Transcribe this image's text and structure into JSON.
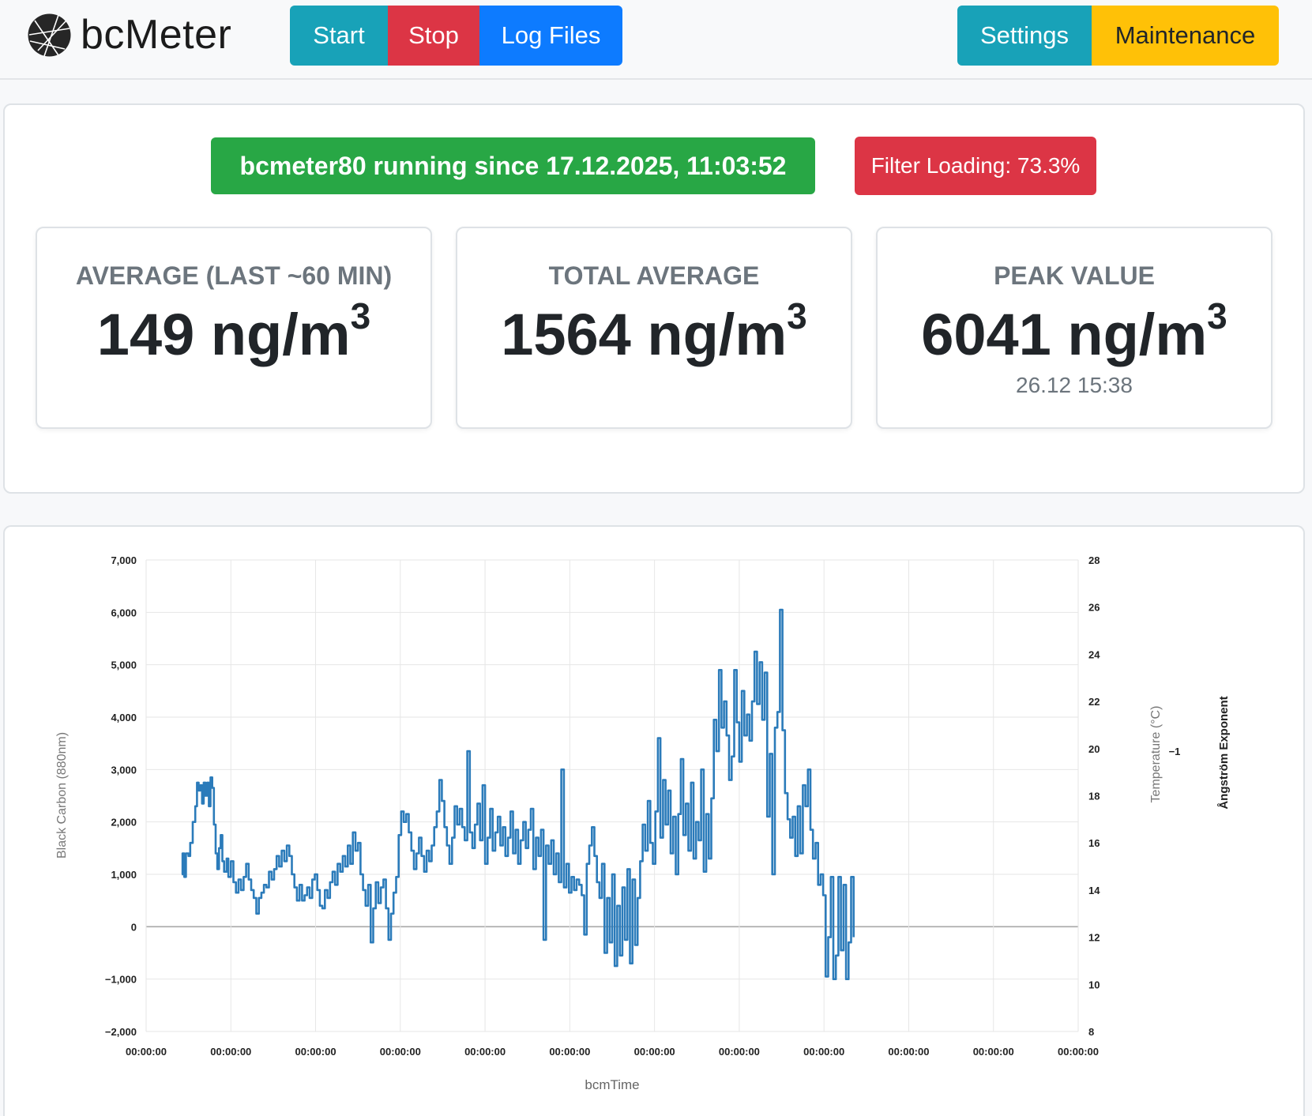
{
  "brand": {
    "name": "bcMeter"
  },
  "nav": {
    "start": "Start",
    "stop": "Stop",
    "log_files": "Log Files",
    "settings": "Settings",
    "maintenance": "Maintenance"
  },
  "status": {
    "running": "bcmeter80 running since 17.12.2025, 11:03:52",
    "filter_loading": "Filter Loading: 73.3%"
  },
  "stats": [
    {
      "label": "AVERAGE (LAST ~60 MIN)",
      "value": "149",
      "unit": "ng/m",
      "exp": "3",
      "sub": ""
    },
    {
      "label": "TOTAL AVERAGE",
      "value": "1564",
      "unit": "ng/m",
      "exp": "3",
      "sub": ""
    },
    {
      "label": "PEAK VALUE",
      "value": "6041",
      "unit": "ng/m",
      "exp": "3",
      "sub": "26.12 15:38"
    }
  ],
  "colors": {
    "series": "#2b7bba",
    "grid": "#e6e6e6",
    "zero_line": "#a8a8a8"
  },
  "chart_data": {
    "type": "line",
    "xlabel": "bcmTime",
    "ylabel": "Black Carbon (880nm)",
    "y2label": "Temperature (°C)",
    "y3label": "Ångström Exponent",
    "y3tick": "−1",
    "ylim": [
      -2000,
      7000
    ],
    "y2lim": [
      8,
      28
    ],
    "yticks": [
      "7,000",
      "6,000",
      "5,000",
      "4,000",
      "3,000",
      "2,000",
      "1,000",
      "0",
      "−1,000",
      "−2,000"
    ],
    "y2ticks": [
      "28",
      "26",
      "24",
      "22",
      "20",
      "18",
      "16",
      "14",
      "12",
      "10",
      "8"
    ],
    "xticks": [
      "00:00:00",
      "00:00:00",
      "00:00:00",
      "00:00:00",
      "00:00:00",
      "00:00:00",
      "00:00:00",
      "00:00:00",
      "00:00:00",
      "00:00:00",
      "00:00:00",
      "00:00:00"
    ],
    "grid": true,
    "series": [
      {
        "values": [
          [
            0.42,
            1000
          ],
          [
            0.43,
            1400
          ],
          [
            0.45,
            950
          ],
          [
            0.47,
            1400
          ],
          [
            0.5,
            1350
          ],
          [
            0.52,
            1600
          ],
          [
            0.55,
            2000
          ],
          [
            0.58,
            2300
          ],
          [
            0.6,
            2750
          ],
          [
            0.62,
            2600
          ],
          [
            0.64,
            2700
          ],
          [
            0.66,
            2350
          ],
          [
            0.68,
            2750
          ],
          [
            0.7,
            2500
          ],
          [
            0.72,
            2750
          ],
          [
            0.74,
            2300
          ],
          [
            0.76,
            2850
          ],
          [
            0.78,
            2650
          ],
          [
            0.8,
            1950
          ],
          [
            0.82,
            1400
          ],
          [
            0.84,
            1100
          ],
          [
            0.86,
            1500
          ],
          [
            0.88,
            1750
          ],
          [
            0.9,
            1250
          ],
          [
            0.92,
            1050
          ],
          [
            0.95,
            1300
          ],
          [
            0.97,
            950
          ],
          [
            1.0,
            1250
          ],
          [
            1.03,
            850
          ],
          [
            1.06,
            650
          ],
          [
            1.09,
            900
          ],
          [
            1.12,
            700
          ],
          [
            1.15,
            950
          ],
          [
            1.18,
            1200
          ],
          [
            1.21,
            900
          ],
          [
            1.24,
            700
          ],
          [
            1.27,
            550
          ],
          [
            1.3,
            250
          ],
          [
            1.33,
            550
          ],
          [
            1.36,
            650
          ],
          [
            1.39,
            800
          ],
          [
            1.42,
            750
          ],
          [
            1.45,
            1050
          ],
          [
            1.48,
            900
          ],
          [
            1.51,
            1100
          ],
          [
            1.54,
            1350
          ],
          [
            1.57,
            1150
          ],
          [
            1.6,
            1450
          ],
          [
            1.63,
            1250
          ],
          [
            1.66,
            1550
          ],
          [
            1.69,
            1350
          ],
          [
            1.72,
            1000
          ],
          [
            1.75,
            750
          ],
          [
            1.78,
            500
          ],
          [
            1.81,
            800
          ],
          [
            1.84,
            500
          ],
          [
            1.87,
            600
          ],
          [
            1.9,
            750
          ],
          [
            1.93,
            550
          ],
          [
            1.96,
            900
          ],
          [
            1.99,
            1000
          ],
          [
            2.02,
            700
          ],
          [
            2.05,
            400
          ],
          [
            2.08,
            350
          ],
          [
            2.11,
            700
          ],
          [
            2.14,
            550
          ],
          [
            2.17,
            850
          ],
          [
            2.2,
            1050
          ],
          [
            2.23,
            800
          ],
          [
            2.26,
            1200
          ],
          [
            2.29,
            1050
          ],
          [
            2.32,
            1350
          ],
          [
            2.35,
            1150
          ],
          [
            2.38,
            1550
          ],
          [
            2.41,
            1200
          ],
          [
            2.44,
            1800
          ],
          [
            2.47,
            1450
          ],
          [
            2.5,
            1600
          ],
          [
            2.53,
            1000
          ],
          [
            2.56,
            700
          ],
          [
            2.59,
            400
          ],
          [
            2.62,
            800
          ],
          [
            2.65,
            -300
          ],
          [
            2.68,
            350
          ],
          [
            2.71,
            850
          ],
          [
            2.74,
            450
          ],
          [
            2.77,
            750
          ],
          [
            2.8,
            900
          ],
          [
            2.83,
            350
          ],
          [
            2.86,
            -250
          ],
          [
            2.89,
            250
          ],
          [
            2.92,
            650
          ],
          [
            2.95,
            950
          ],
          [
            2.98,
            1750
          ],
          [
            3.01,
            2200
          ],
          [
            3.04,
            2000
          ],
          [
            3.07,
            2150
          ],
          [
            3.1,
            1800
          ],
          [
            3.13,
            1450
          ],
          [
            3.16,
            1100
          ],
          [
            3.19,
            1400
          ],
          [
            3.22,
            1700
          ],
          [
            3.25,
            1350
          ],
          [
            3.28,
            1050
          ],
          [
            3.31,
            1450
          ],
          [
            3.34,
            1250
          ],
          [
            3.37,
            1550
          ],
          [
            3.4,
            1900
          ],
          [
            3.43,
            2200
          ],
          [
            3.46,
            2800
          ],
          [
            3.49,
            2400
          ],
          [
            3.52,
            1900
          ],
          [
            3.55,
            1550
          ],
          [
            3.58,
            1200
          ],
          [
            3.61,
            1700
          ],
          [
            3.64,
            2300
          ],
          [
            3.67,
            1950
          ],
          [
            3.7,
            2250
          ],
          [
            3.73,
            1900
          ],
          [
            3.76,
            1650
          ],
          [
            3.79,
            3350
          ],
          [
            3.82,
            1800
          ],
          [
            3.85,
            1500
          ],
          [
            3.88,
            1950
          ],
          [
            3.91,
            2350
          ],
          [
            3.94,
            1650
          ],
          [
            3.97,
            2700
          ],
          [
            4.0,
            1200
          ],
          [
            4.03,
            1700
          ],
          [
            4.06,
            2250
          ],
          [
            4.09,
            1450
          ],
          [
            4.12,
            1800
          ],
          [
            4.15,
            2100
          ],
          [
            4.18,
            1550
          ],
          [
            4.21,
            1900
          ],
          [
            4.24,
            1350
          ],
          [
            4.27,
            1700
          ],
          [
            4.3,
            2200
          ],
          [
            4.33,
            1400
          ],
          [
            4.36,
            1850
          ],
          [
            4.39,
            1200
          ],
          [
            4.42,
            1650
          ],
          [
            4.45,
            2000
          ],
          [
            4.48,
            1500
          ],
          [
            4.51,
            1850
          ],
          [
            4.54,
            2250
          ],
          [
            4.57,
            1100
          ],
          [
            4.6,
            1700
          ],
          [
            4.63,
            1350
          ],
          [
            4.66,
            1850
          ],
          [
            4.69,
            -250
          ],
          [
            4.72,
            1550
          ],
          [
            4.75,
            1200
          ],
          [
            4.78,
            1650
          ],
          [
            4.81,
            1000
          ],
          [
            4.84,
            1400
          ],
          [
            4.87,
            850
          ],
          [
            4.9,
            3000
          ],
          [
            4.93,
            750
          ],
          [
            4.96,
            1200
          ],
          [
            4.99,
            650
          ],
          [
            5.02,
            950
          ],
          [
            5.05,
            700
          ],
          [
            5.08,
            900
          ],
          [
            5.11,
            800
          ],
          [
            5.14,
            600
          ],
          [
            5.17,
            -150
          ],
          [
            5.2,
            1200
          ],
          [
            5.23,
            1550
          ],
          [
            5.26,
            1900
          ],
          [
            5.29,
            1350
          ],
          [
            5.32,
            850
          ],
          [
            5.35,
            550
          ],
          [
            5.38,
            1200
          ],
          [
            5.41,
            -500
          ],
          [
            5.44,
            550
          ],
          [
            5.47,
            -300
          ],
          [
            5.5,
            1000
          ],
          [
            5.53,
            -750
          ],
          [
            5.56,
            400
          ],
          [
            5.59,
            -550
          ],
          [
            5.62,
            750
          ],
          [
            5.65,
            -250
          ],
          [
            5.68,
            1100
          ],
          [
            5.71,
            -700
          ],
          [
            5.74,
            900
          ],
          [
            5.77,
            -350
          ],
          [
            5.8,
            550
          ],
          [
            5.83,
            1250
          ],
          [
            5.86,
            1950
          ],
          [
            5.89,
            1450
          ],
          [
            5.92,
            2400
          ],
          [
            5.95,
            1600
          ],
          [
            5.98,
            1200
          ],
          [
            6.01,
            2200
          ],
          [
            6.04,
            3600
          ],
          [
            6.07,
            1700
          ],
          [
            6.1,
            2800
          ],
          [
            6.13,
            1950
          ],
          [
            6.16,
            2600
          ],
          [
            6.19,
            1400
          ],
          [
            6.22,
            2100
          ],
          [
            6.25,
            1000
          ],
          [
            6.28,
            2150
          ],
          [
            6.31,
            3200
          ],
          [
            6.34,
            1750
          ],
          [
            6.37,
            2350
          ],
          [
            6.4,
            1450
          ],
          [
            6.43,
            2750
          ],
          [
            6.46,
            1300
          ],
          [
            6.49,
            2000
          ],
          [
            6.52,
            1650
          ],
          [
            6.55,
            3000
          ],
          [
            6.58,
            1050
          ],
          [
            6.61,
            2150
          ],
          [
            6.64,
            1300
          ],
          [
            6.67,
            2450
          ],
          [
            6.7,
            3950
          ],
          [
            6.73,
            3350
          ],
          [
            6.76,
            4900
          ],
          [
            6.79,
            3800
          ],
          [
            6.82,
            4300
          ],
          [
            6.85,
            3650
          ],
          [
            6.88,
            2800
          ],
          [
            6.91,
            3250
          ],
          [
            6.94,
            4900
          ],
          [
            6.97,
            3900
          ],
          [
            7.0,
            3150
          ],
          [
            7.03,
            4500
          ],
          [
            7.06,
            3650
          ],
          [
            7.09,
            4050
          ],
          [
            7.12,
            3550
          ],
          [
            7.15,
            4300
          ],
          [
            7.18,
            5250
          ],
          [
            7.21,
            4250
          ],
          [
            7.24,
            5050
          ],
          [
            7.27,
            3950
          ],
          [
            7.3,
            4850
          ],
          [
            7.33,
            2100
          ],
          [
            7.36,
            3300
          ],
          [
            7.39,
            1000
          ],
          [
            7.42,
            3800
          ],
          [
            7.45,
            4100
          ],
          [
            7.48,
            6050
          ],
          [
            7.51,
            3750
          ],
          [
            7.54,
            2550
          ],
          [
            7.57,
            2050
          ],
          [
            7.6,
            1700
          ],
          [
            7.63,
            2100
          ],
          [
            7.66,
            1350
          ],
          [
            7.69,
            2300
          ],
          [
            7.72,
            1400
          ],
          [
            7.75,
            2700
          ],
          [
            7.78,
            2300
          ],
          [
            7.81,
            3000
          ],
          [
            7.84,
            1850
          ],
          [
            7.87,
            1300
          ],
          [
            7.9,
            1600
          ],
          [
            7.93,
            800
          ],
          [
            7.96,
            1000
          ],
          [
            7.99,
            600
          ],
          [
            8.02,
            -950
          ],
          [
            8.05,
            -200
          ],
          [
            8.08,
            950
          ],
          [
            8.11,
            -1000
          ],
          [
            8.14,
            -550
          ],
          [
            8.17,
            950
          ],
          [
            8.2,
            -450
          ],
          [
            8.23,
            800
          ],
          [
            8.26,
            -1000
          ],
          [
            8.29,
            -300
          ],
          [
            8.32,
            950
          ],
          [
            8.35,
            -200
          ]
        ]
      }
    ]
  }
}
